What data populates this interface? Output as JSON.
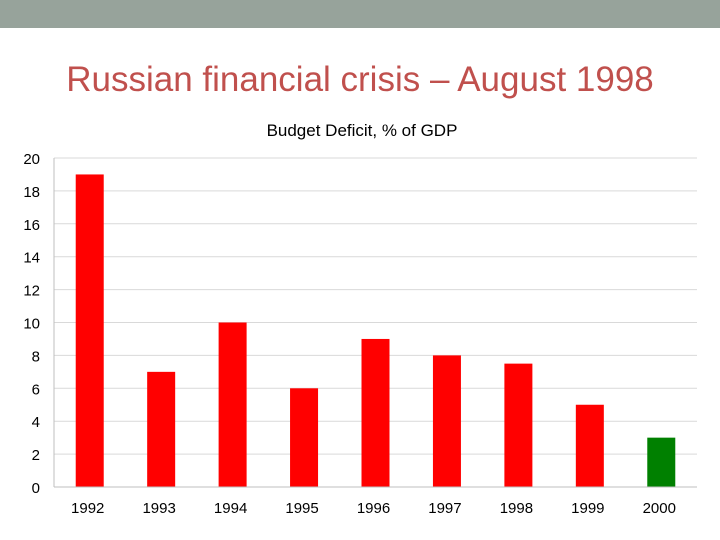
{
  "slide": {
    "title": "Russian financial crisis – August 1998",
    "band_color": "#97a39b",
    "title_color": "#c0504d"
  },
  "chart_data": {
    "type": "bar",
    "title": "Budget Deficit, % of GDP",
    "xlabel": "",
    "ylabel": "",
    "categories": [
      "1992",
      "1993",
      "1994",
      "1995",
      "1996",
      "1997",
      "1998",
      "1999",
      "2000"
    ],
    "values": [
      19,
      7,
      10,
      6,
      9,
      8,
      7.5,
      5,
      3
    ],
    "colors": [
      "#ff0000",
      "#ff0000",
      "#ff0000",
      "#ff0000",
      "#ff0000",
      "#ff0000",
      "#ff0000",
      "#ff0000",
      "#008000"
    ],
    "ylim": [
      0,
      20
    ],
    "yticks": [
      "0",
      "2",
      "4",
      "6",
      "8",
      "10",
      "12",
      "14",
      "16",
      "18",
      "20"
    ],
    "grid": true,
    "legend": "none"
  }
}
